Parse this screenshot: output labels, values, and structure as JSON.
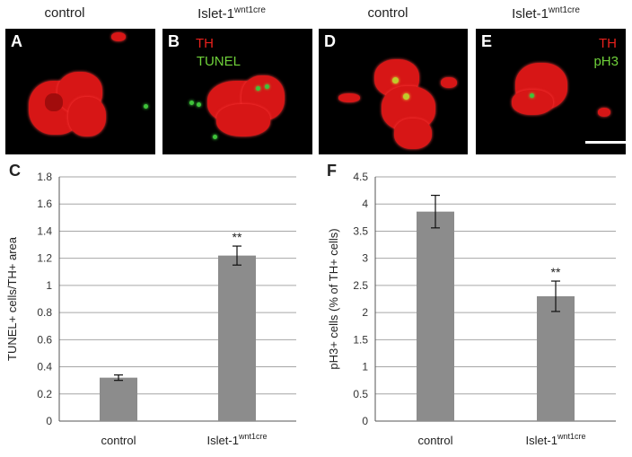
{
  "headers": [
    {
      "text": "control",
      "sup": ""
    },
    {
      "text": "Islet-1",
      "sup": "wnt1cre"
    },
    {
      "text": "control",
      "sup": ""
    },
    {
      "text": "Islet-1",
      "sup": "wnt1cre"
    }
  ],
  "panels": {
    "A": {
      "label": "A"
    },
    "B": {
      "label": "B",
      "marker1": "TH",
      "marker2": "TUNEL"
    },
    "D": {
      "label": "D"
    },
    "E": {
      "label": "E",
      "marker1": "TH",
      "marker2": "pH3"
    }
  },
  "colors": {
    "bar": "#8c8c8c",
    "grid": "#a6a6a6",
    "th": "#e8201c",
    "green": "#6fd13a"
  },
  "chart_data": [
    {
      "panel_label": "C",
      "type": "bar",
      "categories": [
        "control",
        "Islet-1"
      ],
      "category_sup": [
        "",
        "wnt1cre"
      ],
      "values": [
        0.32,
        1.22
      ],
      "errors": [
        0.02,
        0.07
      ],
      "annotations": [
        "",
        "**"
      ],
      "ylabel": "TUNEL+ cells/TH+ area",
      "ylim": [
        0,
        1.8
      ],
      "yticks": [
        0,
        0.2,
        0.4,
        0.6,
        0.8,
        1,
        1.2,
        1.4,
        1.6,
        1.8
      ],
      "ytick_labels": [
        "0",
        "0.2",
        "0.4",
        "0.6",
        "0.8",
        "1",
        "1.2",
        "1.4",
        "1.6",
        "1.8"
      ],
      "grid": true
    },
    {
      "panel_label": "F",
      "type": "bar",
      "categories": [
        "control",
        "Islet-1"
      ],
      "category_sup": [
        "",
        "wnt1cre"
      ],
      "values": [
        3.86,
        2.3
      ],
      "errors": [
        0.3,
        0.28
      ],
      "annotations": [
        "",
        "**"
      ],
      "ylabel": "pH3+ cells (% of TH+ cells)",
      "ylim": [
        0,
        4.5
      ],
      "yticks": [
        0,
        0.5,
        1,
        1.5,
        2,
        2.5,
        3,
        3.5,
        4,
        4.5
      ],
      "ytick_labels": [
        "0",
        "0.5",
        "1",
        "1.5",
        "2",
        "2.5",
        "3",
        "3.5",
        "4",
        "4.5"
      ],
      "grid": true
    }
  ]
}
